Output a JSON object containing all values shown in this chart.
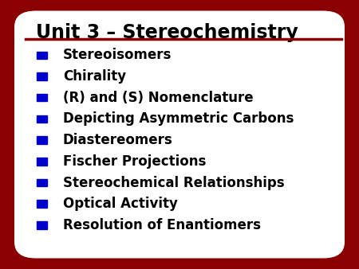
{
  "title": "Unit 3 – Stereochemistry",
  "title_color": "#000000",
  "title_fontsize": 17,
  "underline_color": "#8B0000",
  "background_outer": "#8B0000",
  "background_inner": "#FFFFFF",
  "bullet_color": "#0000CC",
  "bullet_text_color": "#000000",
  "bullet_fontsize": 12,
  "items": [
    "Stereoisomers",
    "Chirality",
    "(R) and (S) Nomenclature",
    "Depicting Asymmetric Carbons",
    "Diastereomers",
    "Fischer Projections",
    "Stereochemical Relationships",
    "Optical Activity",
    "Resolution of Enantiomers"
  ]
}
